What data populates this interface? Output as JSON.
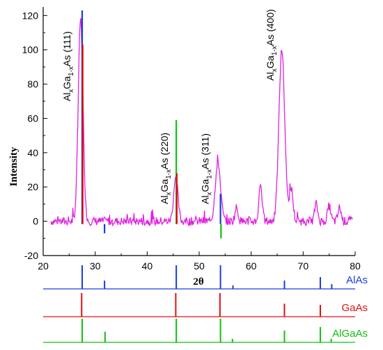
{
  "chart_data": {
    "type": "line",
    "title": "",
    "xlabel": "2θ",
    "ylabel": "Intensity",
    "xlim": [
      20,
      80
    ],
    "ylim": [
      -20,
      125
    ],
    "x_ticks": [
      20,
      30,
      40,
      50,
      60,
      70,
      80
    ],
    "y_ticks": [
      -20,
      0,
      20,
      40,
      60,
      80,
      100,
      120
    ],
    "grid": false,
    "main_series": {
      "name": "",
      "color": "#e020e0",
      "baseline": 0,
      "noise_amplitude": 2.5,
      "peaks": [
        {
          "x": 27.2,
          "y": 118,
          "width": 0.45
        },
        {
          "x": 45.5,
          "y": 26,
          "width": 0.4
        },
        {
          "x": 53.6,
          "y": 35,
          "width": 0.5
        },
        {
          "x": 65.9,
          "y": 100,
          "width": 0.55
        },
        {
          "x": 67.7,
          "y": 19,
          "width": 0.35
        },
        {
          "x": 61.8,
          "y": 22,
          "width": 0.3
        },
        {
          "x": 57.2,
          "y": 8,
          "width": 0.3
        },
        {
          "x": 72.5,
          "y": 10,
          "width": 0.3
        },
        {
          "x": 75.0,
          "y": 9,
          "width": 0.3
        },
        {
          "x": 77.0,
          "y": 8,
          "width": 0.3
        }
      ]
    },
    "overlay_sticks": [
      {
        "x": 27.5,
        "y": 123,
        "color": "#1a3cd8"
      },
      {
        "x": 27.6,
        "y": 103,
        "color": "#e01010"
      },
      {
        "x": 31.8,
        "y": -7,
        "color": "#1a3cd8"
      },
      {
        "x": 45.6,
        "y": 59,
        "color": "#10c010"
      },
      {
        "x": 45.7,
        "y": 28,
        "color": "#e01010"
      },
      {
        "x": 54.1,
        "y": 16,
        "color": "#1a3cd8"
      },
      {
        "x": 54.2,
        "y": -10,
        "color": "#10c010"
      }
    ],
    "annotations": [
      {
        "main": "Al",
        "sub1": "x",
        "mid": "Ga",
        "sub2": "1-x",
        "end": "As (111)",
        "x": 25.2,
        "y": 70
      },
      {
        "main": "Al",
        "sub1": "x",
        "mid": "Ga",
        "sub2": "1-x",
        "end": "As (220)",
        "x": 44.0,
        "y": 10
      },
      {
        "main": "Al",
        "sub1": "x",
        "mid": "Ga",
        "sub2": "1-x",
        "end": "As (311)",
        "x": 51.8,
        "y": 10
      },
      {
        "main": "Al",
        "sub1": "x",
        "mid": "Ga",
        "sub2": "1-x",
        "end": "As (400)",
        "x": 64.3,
        "y": 82
      }
    ],
    "reference_patterns": [
      {
        "name": "AlAs",
        "color": "#1a3cd8",
        "peaks": [
          {
            "x": 27.5,
            "h": 1.0
          },
          {
            "x": 31.8,
            "h": 0.35
          },
          {
            "x": 45.6,
            "h": 1.0
          },
          {
            "x": 54.1,
            "h": 1.0
          },
          {
            "x": 56.5,
            "h": 0.15
          },
          {
            "x": 66.4,
            "h": 0.35
          },
          {
            "x": 73.3,
            "h": 0.5
          },
          {
            "x": 75.5,
            "h": 0.2
          }
        ]
      },
      {
        "name": "GaAs",
        "color": "#e01010",
        "peaks": [
          {
            "x": 27.4,
            "h": 1.0
          },
          {
            "x": 45.5,
            "h": 1.0
          },
          {
            "x": 54.0,
            "h": 1.0
          },
          {
            "x": 66.4,
            "h": 0.55
          },
          {
            "x": 73.3,
            "h": 0.5
          }
        ]
      },
      {
        "name": "AlGaAs",
        "color": "#10c010",
        "peaks": [
          {
            "x": 27.5,
            "h": 1.0
          },
          {
            "x": 31.9,
            "h": 0.45
          },
          {
            "x": 45.6,
            "h": 1.0
          },
          {
            "x": 54.1,
            "h": 1.0
          },
          {
            "x": 56.4,
            "h": 0.15
          },
          {
            "x": 66.4,
            "h": 0.5
          },
          {
            "x": 73.3,
            "h": 0.65
          },
          {
            "x": 75.4,
            "h": 0.15
          }
        ]
      }
    ]
  }
}
